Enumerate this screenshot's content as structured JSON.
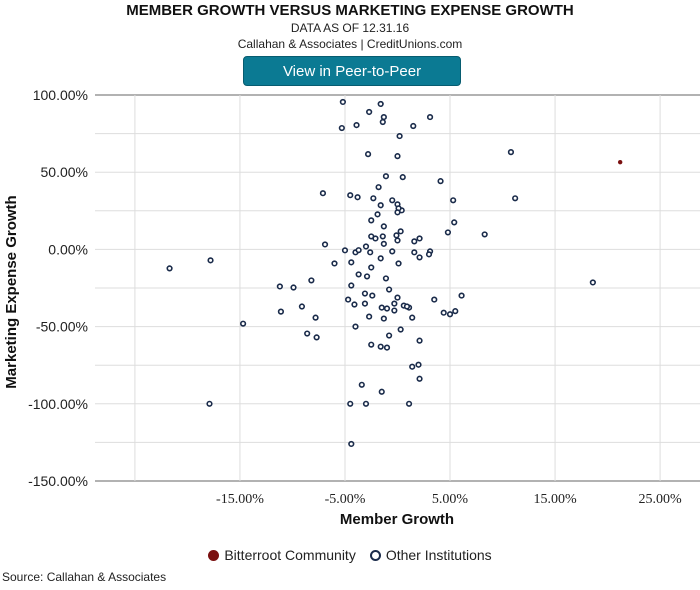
{
  "header": {
    "title": "MEMBER GROWTH VERSUS MARKETING EXPENSE GROWTH",
    "subtitle": "DATA AS OF 12.31.16",
    "credit": "Callahan & Associates | CreditUnions.com",
    "button_label": "View in Peer-to-Peer"
  },
  "footer": {
    "source": "Source: Callahan & Associates"
  },
  "colors": {
    "highlight": "#7a1010",
    "others": "#1a2b4a",
    "button": "#0b7a93"
  },
  "chart_data": {
    "type": "scatter",
    "title": "MEMBER GROWTH VERSUS MARKETING EXPENSE GROWTH",
    "xlabel": "Member Growth",
    "ylabel": "Marketing Expense Growth",
    "xlim": [
      -28.8,
      28.8
    ],
    "ylim": [
      -150,
      100
    ],
    "x_ticks": [
      -15,
      -5,
      5,
      15,
      25
    ],
    "x_tick_labels": [
      "-15.00%",
      "-5.00%",
      "5.00%",
      "15.00%",
      "25.00%"
    ],
    "x_grid": [
      -25,
      -15,
      -5,
      5,
      15,
      25
    ],
    "y_ticks": [
      100,
      50,
      0,
      -50,
      -100,
      -150
    ],
    "y_tick_labels": [
      "100.00%",
      "50.00%",
      "0.00%",
      "-50.00%",
      "-100.00%",
      "-150.00%"
    ],
    "y_grid": [
      100,
      75,
      50,
      25,
      0,
      -25,
      -50,
      -75,
      -100,
      -125,
      -150
    ],
    "legend_position": "bottom",
    "series": [
      {
        "name": "Bitterroot Community",
        "points": [
          [
            21.2,
            56.5
          ]
        ]
      },
      {
        "name": "Other Institutions",
        "points": [
          [
            -5.2,
            95.5
          ],
          [
            -1.6,
            94.2
          ],
          [
            -2.7,
            89.0
          ],
          [
            -1.3,
            85.7
          ],
          [
            -1.4,
            82.5
          ],
          [
            3.1,
            85.7
          ],
          [
            -3.9,
            80.5
          ],
          [
            -5.3,
            78.6
          ],
          [
            1.5,
            79.9
          ],
          [
            0.2,
            73.4
          ],
          [
            -2.8,
            61.7
          ],
          [
            0.0,
            60.4
          ],
          [
            10.8,
            63.0
          ],
          [
            -1.1,
            47.4
          ],
          [
            0.5,
            46.8
          ],
          [
            4.1,
            44.2
          ],
          [
            -1.8,
            40.3
          ],
          [
            -4.5,
            35.1
          ],
          [
            -7.1,
            36.4
          ],
          [
            -3.8,
            33.8
          ],
          [
            0.4,
            25.3
          ],
          [
            5.3,
            31.8
          ],
          [
            11.2,
            33.1
          ],
          [
            -2.3,
            33.1
          ],
          [
            -0.5,
            31.8
          ],
          [
            -1.6,
            28.6
          ],
          [
            0.0,
            29.2
          ],
          [
            0.1,
            26.6
          ],
          [
            -1.9,
            22.7
          ],
          [
            0.0,
            24.0
          ],
          [
            -2.5,
            18.8
          ],
          [
            -1.3,
            14.9
          ],
          [
            0.3,
            11.7
          ],
          [
            5.4,
            17.5
          ],
          [
            -2.5,
            8.4
          ],
          [
            -0.1,
            9.1
          ],
          [
            -1.4,
            8.4
          ],
          [
            0.0,
            5.8
          ],
          [
            -2.1,
            7.1
          ],
          [
            4.8,
            11.0
          ],
          [
            8.3,
            9.7
          ],
          [
            -6.9,
            3.2
          ],
          [
            -5.0,
            -0.6
          ],
          [
            -4.0,
            -1.9
          ],
          [
            -3.0,
            1.9
          ],
          [
            -2.6,
            -1.9
          ],
          [
            -0.5,
            -1.3
          ],
          [
            -1.6,
            -5.8
          ],
          [
            0.1,
            -9.1
          ],
          [
            1.6,
            -1.9
          ],
          [
            2.1,
            -5.2
          ],
          [
            3.1,
            -1.3
          ],
          [
            3.0,
            -3.2
          ],
          [
            2.1,
            7.1
          ],
          [
            1.6,
            5.2
          ],
          [
            -2.5,
            -11.7
          ],
          [
            -4.4,
            -8.4
          ],
          [
            -3.7,
            -16.2
          ],
          [
            -2.9,
            -17.5
          ],
          [
            -1.1,
            -18.8
          ],
          [
            -6.0,
            -9.1
          ],
          [
            -8.2,
            -20.1
          ],
          [
            -4.4,
            -23.4
          ],
          [
            -3.1,
            -28.6
          ],
          [
            -11.2,
            -24.0
          ],
          [
            -9.9,
            -24.7
          ],
          [
            -0.8,
            -26.0
          ],
          [
            -2.4,
            -29.9
          ],
          [
            -4.7,
            -32.5
          ],
          [
            0.0,
            -31.2
          ],
          [
            -0.3,
            -35.1
          ],
          [
            -4.1,
            -35.7
          ],
          [
            3.5,
            -32.5
          ],
          [
            6.1,
            -29.9
          ],
          [
            -3.1,
            -35.1
          ],
          [
            -1.5,
            -37.7
          ],
          [
            -1.0,
            -38.3
          ],
          [
            0.6,
            -36.4
          ],
          [
            1.1,
            -37.7
          ],
          [
            1.4,
            -44.2
          ],
          [
            -2.7,
            -43.5
          ],
          [
            -0.3,
            -39.6
          ],
          [
            -1.3,
            -44.8
          ],
          [
            -9.1,
            -37.0
          ],
          [
            -11.1,
            -40.3
          ],
          [
            -14.7,
            -48.1
          ],
          [
            -8.6,
            -54.5
          ],
          [
            -7.8,
            -44.2
          ],
          [
            -4.0,
            -50.0
          ],
          [
            0.3,
            -51.9
          ],
          [
            -7.7,
            -57.0
          ],
          [
            -0.8,
            -55.8
          ],
          [
            2.1,
            -59.1
          ],
          [
            -2.5,
            -61.7
          ],
          [
            -1.6,
            -63.0
          ],
          [
            -1.0,
            -63.6
          ],
          [
            1.4,
            -76.0
          ],
          [
            2.0,
            -74.7
          ],
          [
            2.1,
            -83.8
          ],
          [
            -3.4,
            -87.7
          ],
          [
            -1.5,
            -92.2
          ],
          [
            -4.5,
            -100
          ],
          [
            -3.0,
            -100
          ],
          [
            1.1,
            -100
          ],
          [
            -17.9,
            -100
          ],
          [
            -4.4,
            -126
          ],
          [
            -21.7,
            -12.3
          ],
          [
            -17.8,
            -7.1
          ],
          [
            18.6,
            -21.4
          ],
          [
            5.0,
            -42.0
          ],
          [
            5.5,
            -40.0
          ],
          [
            4.4,
            -41.0
          ],
          [
            0.9,
            -37.0
          ],
          [
            -3.7,
            -0.5
          ],
          [
            -1.3,
            3.6
          ]
        ]
      }
    ]
  }
}
